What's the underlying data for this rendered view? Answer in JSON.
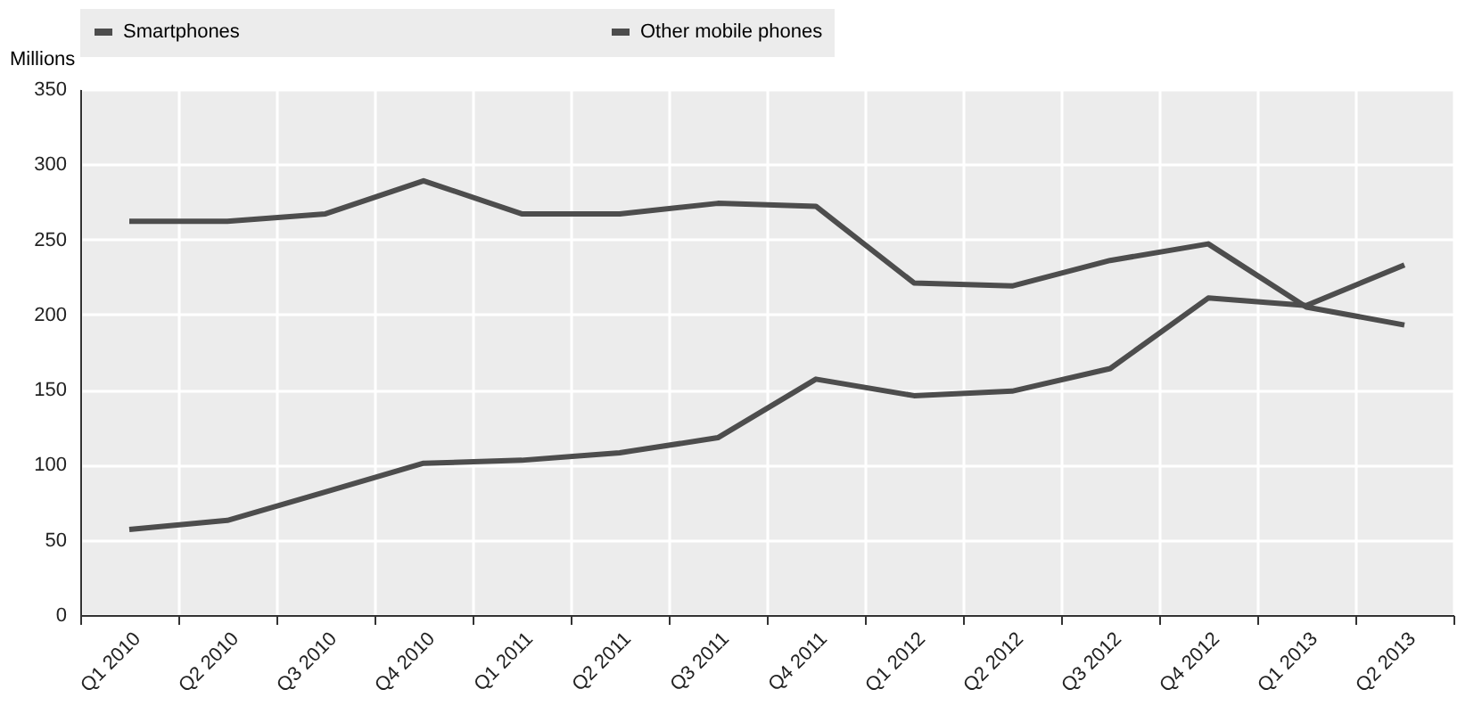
{
  "chart_data": {
    "type": "line",
    "ylabel": "Millions",
    "categories": [
      "Q1 2010",
      "Q2 2010",
      "Q3 2010",
      "Q4 2010",
      "Q1 2011",
      "Q2 2011",
      "Q3 2011",
      "Q4 2011",
      "Q1 2012",
      "Q2 2012",
      "Q3 2012",
      "Q4 2012",
      "Q1 2013",
      "Q2 2013"
    ],
    "series": [
      {
        "name": "Smartphones",
        "color": "#4d4d4d",
        "values": [
          57,
          63,
          82,
          101,
          103,
          108,
          118,
          157,
          146,
          149,
          164,
          211,
          206,
          233
        ]
      },
      {
        "name": "Other mobile phones",
        "color": "#4d4d4d",
        "values": [
          262,
          262,
          267,
          289,
          267,
          267,
          274,
          272,
          221,
          219,
          236,
          247,
          205,
          193
        ]
      }
    ],
    "ylim": [
      0,
      350
    ],
    "yticks": [
      0,
      50,
      100,
      150,
      200,
      250,
      300,
      350
    ],
    "grid": true,
    "legend": "top",
    "line_style": "solid",
    "marker": "none"
  }
}
